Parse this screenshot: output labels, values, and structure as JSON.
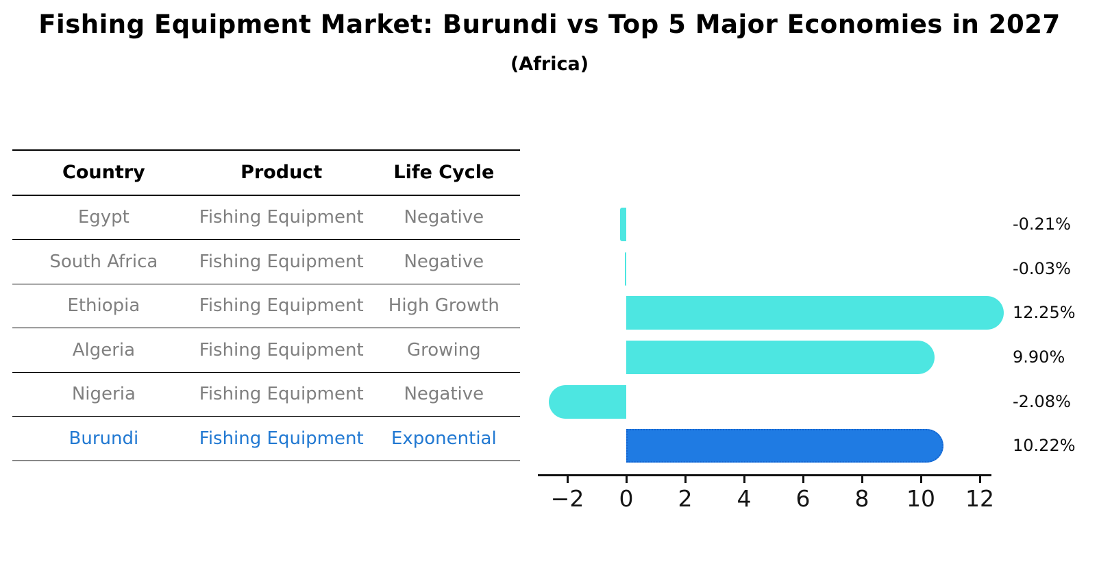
{
  "title": "Fishing Equipment Market: Burundi vs Top 5 Major Economies in 2027",
  "subtitle": "(Africa)",
  "table": {
    "columns": [
      "Country",
      "Product",
      "Life Cycle"
    ],
    "rows": [
      {
        "country": "Egypt",
        "product": "Fishing Equipment",
        "life_cycle": "Negative"
      },
      {
        "country": "South Africa",
        "product": "Fishing Equipment",
        "life_cycle": "Negative"
      },
      {
        "country": "Ethiopia",
        "product": "Fishing Equipment",
        "life_cycle": "High Growth"
      },
      {
        "country": "Algeria",
        "product": "Fishing Equipment",
        "life_cycle": "Growing"
      },
      {
        "country": "Nigeria",
        "product": "Fishing Equipment",
        "life_cycle": "Negative"
      },
      {
        "country": "Burundi",
        "product": "Fishing Equipment",
        "life_cycle": "Exponential"
      }
    ],
    "highlight_row": "Burundi"
  },
  "chart_data": {
    "type": "bar",
    "orientation": "horizontal",
    "title": "Fishing Equipment Market: Burundi vs Top 5 Major Economies in 2027",
    "subtitle": "(Africa)",
    "categories": [
      "Egypt",
      "South Africa",
      "Ethiopia",
      "Algeria",
      "Nigeria",
      "Burundi"
    ],
    "values": [
      -0.21,
      -0.03,
      12.25,
      9.9,
      -2.08,
      10.22
    ],
    "value_labels": [
      "-0.21%",
      "-0.03%",
      "12.25%",
      "9.90%",
      "-2.08%",
      "10.22%"
    ],
    "xticks": [
      -2,
      0,
      2,
      4,
      6,
      8,
      10,
      12
    ],
    "xtick_labels": [
      "−2",
      "0",
      "2",
      "4",
      "6",
      "8",
      "10",
      "12"
    ],
    "xlim": [
      -3,
      13
    ],
    "grid": false,
    "legend": false,
    "bar_color": "#4DE6E1",
    "highlight_index": 5,
    "highlight_color": "#1F7BE3",
    "highlight_edge_color": "#1565D0",
    "highlight_edge_style": "dotted"
  },
  "colors": {
    "background": "#FFFFFF",
    "table_text": "#808080",
    "table_header_text": "#000000",
    "highlight_text": "#2279D2",
    "axis": "#111111",
    "value_label_text": "#0D0D0D"
  }
}
